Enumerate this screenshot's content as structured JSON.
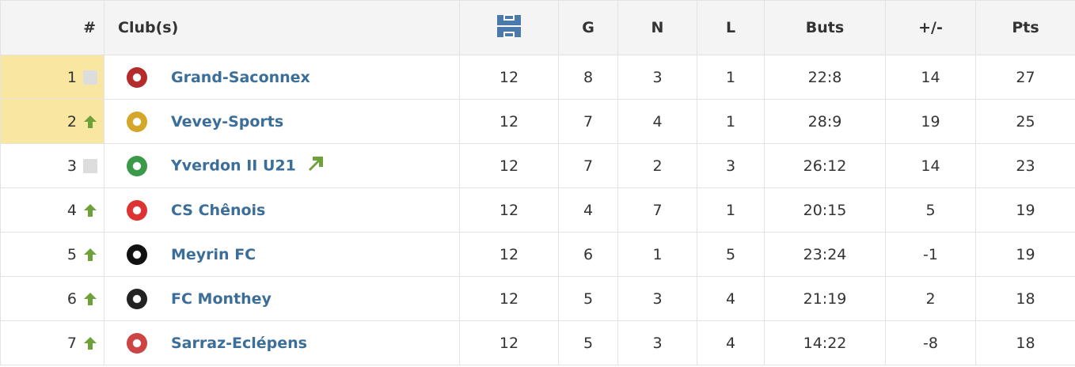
{
  "table": {
    "header": [
      "#",
      "Club(s)",
      "G",
      "N",
      "L",
      "Buts",
      "+/-",
      "Pts"
    ],
    "rows": [
      {
        "rank": 1,
        "club": "Grand-Saconnex",
        "played": 12,
        "g": 8,
        "n": 3,
        "l": 1,
        "buts": "22:8",
        "diff": 14,
        "pts": 27
      },
      {
        "rank": 2,
        "club": "Vevey-Sports",
        "played": 12,
        "g": 7,
        "n": 4,
        "l": 1,
        "buts": "28:9",
        "diff": 19,
        "pts": 25
      },
      {
        "rank": 3,
        "club": "Yverdon II U21",
        "played": 12,
        "g": 7,
        "n": 2,
        "l": 3,
        "buts": "26:12",
        "diff": 14,
        "pts": 23
      },
      {
        "rank": 4,
        "club": "CS Chênois",
        "played": 12,
        "g": 4,
        "n": 7,
        "l": 1,
        "buts": "20:15",
        "diff": 5,
        "pts": 19
      },
      {
        "rank": 5,
        "club": "Meyrin FC",
        "played": 12,
        "g": 6,
        "n": 1,
        "l": 5,
        "buts": "23:24",
        "diff": -1,
        "pts": 19
      },
      {
        "rank": 6,
        "club": "FC Monthey",
        "played": 12,
        "g": 5,
        "n": 3,
        "l": 4,
        "buts": "21:19",
        "diff": 2,
        "pts": 18
      },
      {
        "rank": 7,
        "club": "Sarraz-Eclépens",
        "played": 12,
        "g": 5,
        "n": 3,
        "l": 4,
        "buts": "14:22",
        "diff": -8,
        "pts": 18
      }
    ]
  }
}
